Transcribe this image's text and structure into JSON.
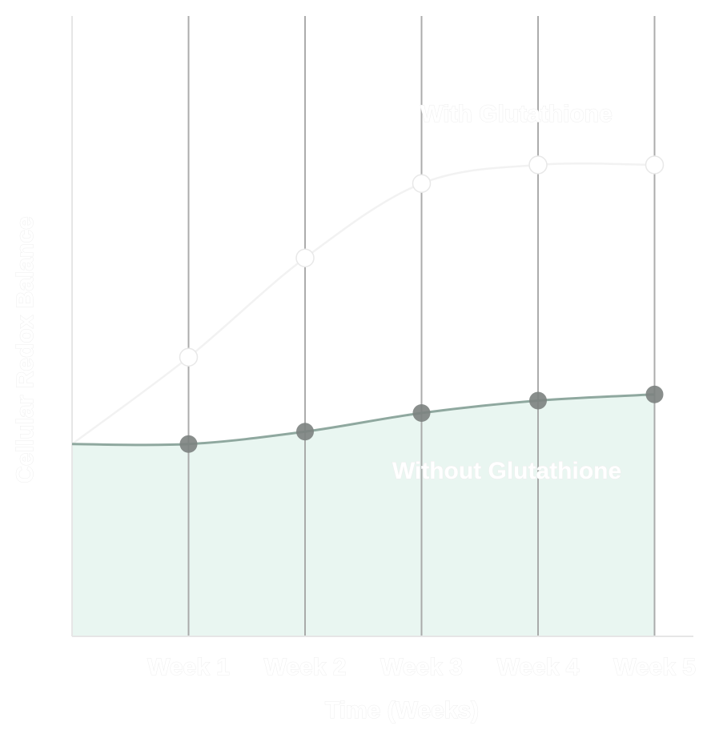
{
  "chart_data": {
    "type": "area",
    "title": "",
    "xlabel": "Time (Weeks)",
    "ylabel": "Cellular Redox Balance",
    "x": [
      0,
      1,
      2,
      3,
      4,
      5
    ],
    "categories": [
      "Week 1",
      "Week 2",
      "Week 3",
      "Week 4",
      "Week 5"
    ],
    "ylim": [
      0,
      100
    ],
    "grid": "vertical",
    "legend": "none",
    "series": [
      {
        "name": "With Glutathione",
        "values": [
          31,
          45,
          61,
          73,
          76,
          76
        ],
        "color": "#f2f2f2",
        "marker_color": "#ffffff",
        "fill": false
      },
      {
        "name": "Without Glutathione",
        "values": [
          31,
          31,
          33,
          36,
          38,
          39
        ],
        "color": "#8fa89f",
        "marker_color": "#7c827f",
        "fill": true,
        "fill_color": "#e9f6f1"
      }
    ],
    "colors": {
      "gridline": "#9e9e9e",
      "axis": "#e6e6e6",
      "text_fill": "#ffffff",
      "text_outline": "#eeeeee"
    }
  }
}
